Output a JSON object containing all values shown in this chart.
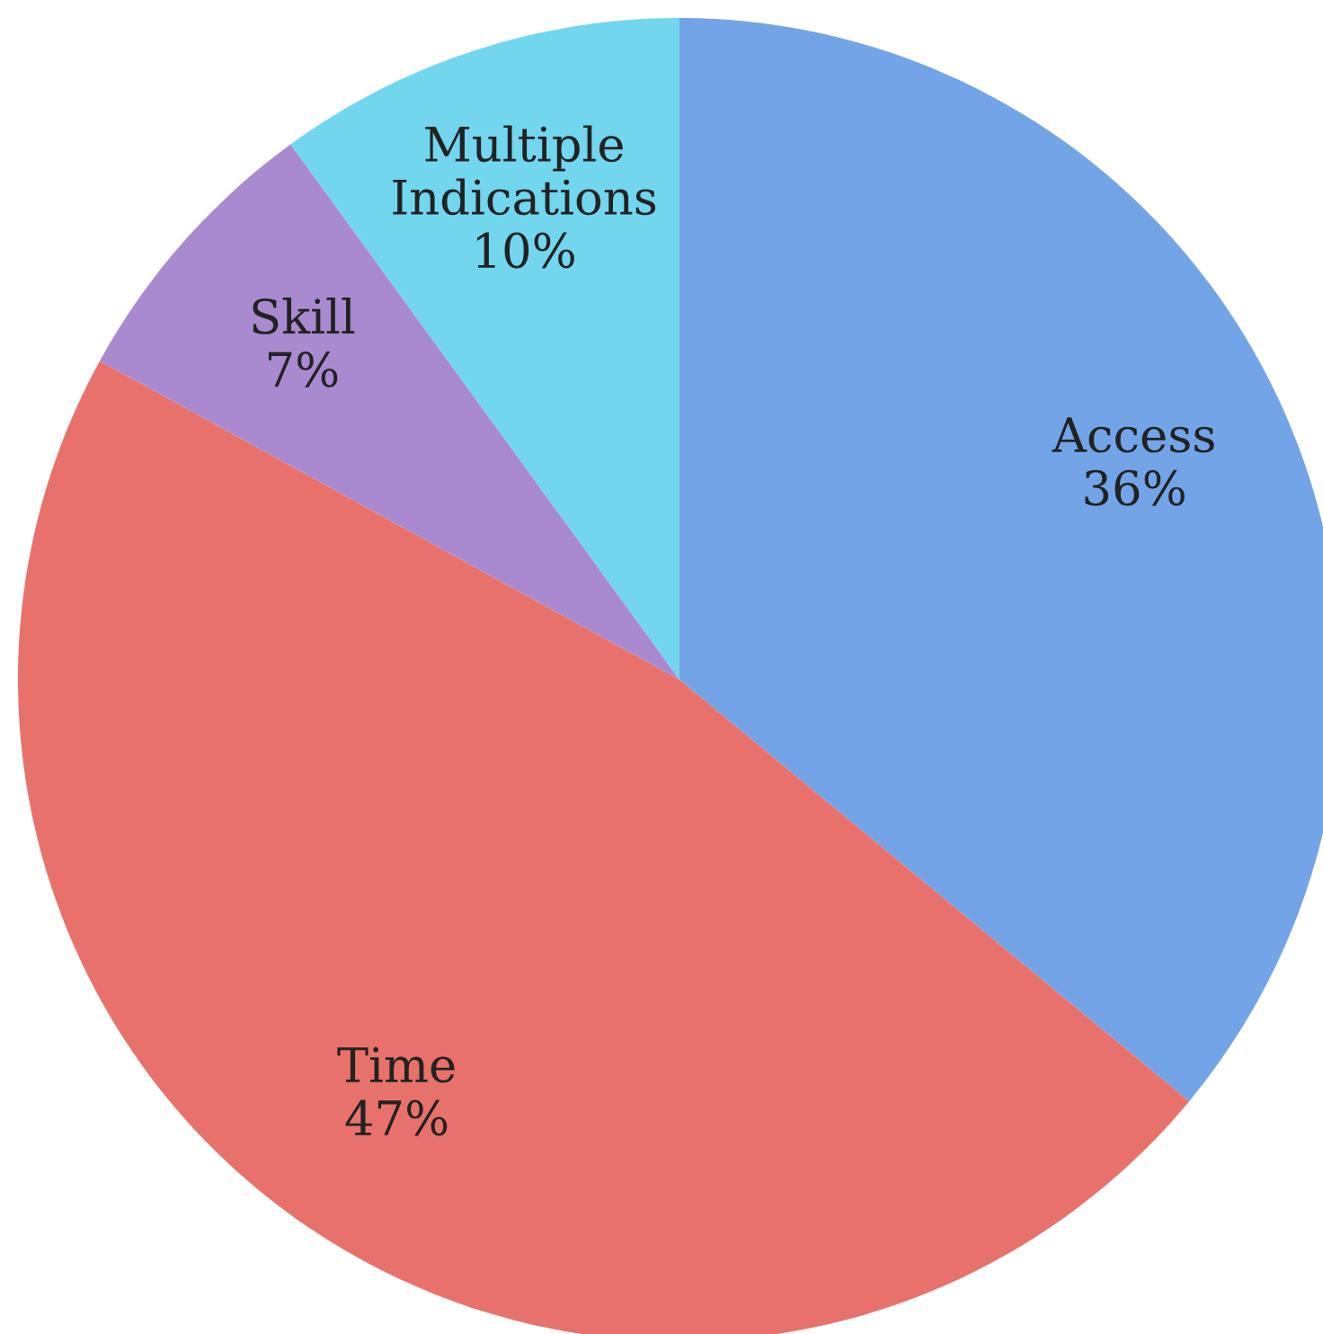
{
  "chart_data": {
    "type": "pie",
    "categories": [
      "Access",
      "Time",
      "Skill",
      "Multiple\nIndications"
    ],
    "values": [
      36,
      47,
      7,
      10
    ],
    "value_labels": [
      "36%",
      "47%",
      "7%",
      "10%"
    ],
    "colors": [
      "#74a4e8",
      "#e8726b",
      "#a98ad0",
      "#72d6ee"
    ]
  }
}
